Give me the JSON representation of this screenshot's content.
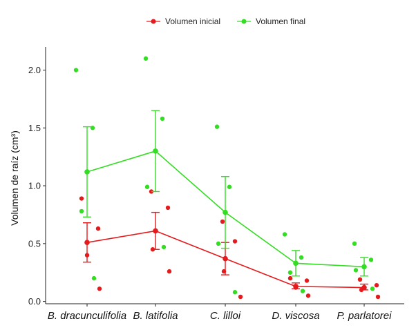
{
  "chart_data": {
    "type": "line",
    "ylabel": "Volumen de raíz (cm³)",
    "xlabel": "",
    "categories": [
      "B. dracunculifolia",
      "B. latifolia",
      "C. lilloi",
      "D. viscosa",
      "P. parlatorei"
    ],
    "ylim": [
      -0.02,
      2.2
    ],
    "yticks": [
      0.0,
      0.5,
      1.0,
      1.5,
      2.0
    ],
    "ytick_labels": [
      "0.0",
      "0.5",
      "1.0",
      "1.5",
      "2.0"
    ],
    "legend_position": "top",
    "grid": false,
    "series": [
      {
        "name": "Volumen inicial",
        "color": "#e41a1c",
        "means": [
          0.51,
          0.61,
          0.37,
          0.13,
          0.12
        ],
        "error_low": [
          0.34,
          0.45,
          0.23,
          0.11,
          0.1
        ],
        "error_high": [
          0.68,
          0.77,
          0.51,
          0.16,
          0.15
        ],
        "points": [
          [
            0.89,
            0.63,
            0.4,
            0.11
          ],
          [
            0.95,
            0.81,
            0.45,
            0.26
          ],
          [
            0.69,
            0.52,
            0.26,
            0.04
          ],
          [
            0.2,
            0.18,
            0.12,
            0.05
          ],
          [
            0.19,
            0.14,
            0.1,
            0.04
          ]
        ]
      },
      {
        "name": "Volumen final",
        "color": "#33dd22",
        "means": [
          1.12,
          1.3,
          0.77,
          0.33,
          0.3
        ],
        "error_low": [
          0.73,
          0.95,
          0.46,
          0.22,
          0.22
        ],
        "error_high": [
          1.51,
          1.65,
          1.08,
          0.44,
          0.38
        ],
        "points": [
          [
            2.0,
            1.5,
            0.78,
            0.2
          ],
          [
            2.1,
            1.58,
            0.99,
            0.47
          ],
          [
            1.51,
            0.99,
            0.5,
            0.08
          ],
          [
            0.58,
            0.38,
            0.25,
            0.09
          ],
          [
            0.5,
            0.36,
            0.27,
            0.11
          ]
        ]
      }
    ]
  }
}
